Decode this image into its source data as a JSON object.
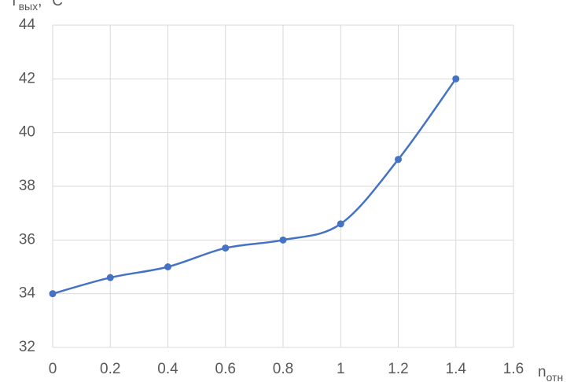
{
  "chart_data": {
    "type": "line",
    "y_label": {
      "main": "T",
      "sub": "вых",
      "unit": ", °C"
    },
    "x_label": {
      "main": "n",
      "sub": "отн"
    },
    "series": [
      {
        "color": "#4472c4",
        "x": [
          0,
          0.2,
          0.4,
          0.6,
          0.8,
          1,
          1.2,
          1.4
        ],
        "values": [
          34,
          34.6,
          35,
          35.7,
          36,
          36.6,
          39,
          42
        ]
      }
    ],
    "xlim": [
      0,
      1.6
    ],
    "xticks": [
      0,
      0.2,
      0.4,
      0.6,
      0.8,
      1,
      1.2,
      1.4,
      1.6
    ],
    "ylim": [
      32,
      44
    ],
    "yticks": [
      32,
      34,
      36,
      38,
      40,
      42,
      44
    ],
    "grid": true,
    "smooth": true
  }
}
